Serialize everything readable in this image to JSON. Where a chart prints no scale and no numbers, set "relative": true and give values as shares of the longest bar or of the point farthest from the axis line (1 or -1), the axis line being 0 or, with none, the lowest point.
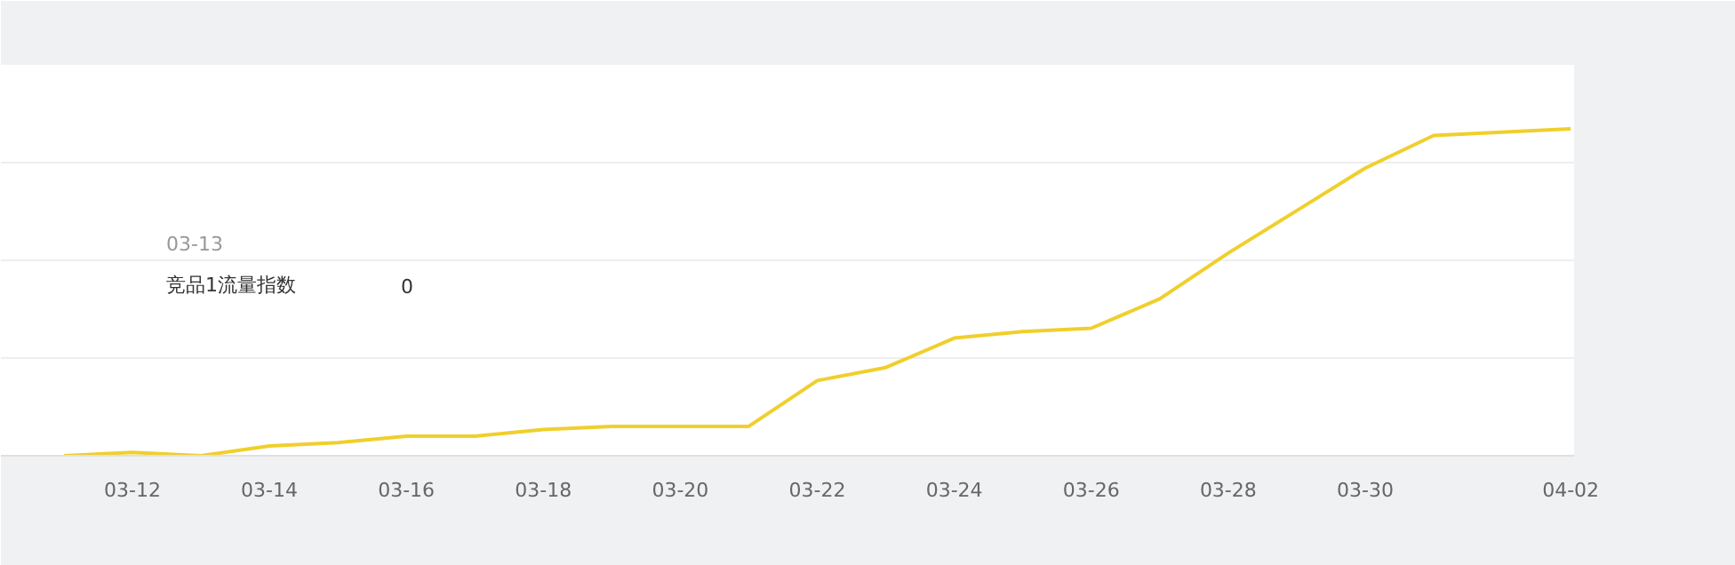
{
  "chart_data": {
    "type": "line",
    "relative": true,
    "categories": [
      null,
      "03-12",
      null,
      "03-14",
      null,
      "03-16",
      null,
      "03-18",
      null,
      "03-20",
      null,
      "03-22",
      null,
      "03-24",
      null,
      "03-26",
      null,
      "03-28",
      null,
      "03-30",
      null,
      null,
      "04-02"
    ],
    "series": [
      {
        "color": "#f0cf2c",
        "values": [
          0,
          0.01,
          0,
          0.03,
          0.04,
          0.06,
          0.06,
          0.08,
          0.09,
          0.09,
          0.09,
          0.23,
          0.27,
          0.36,
          0.38,
          0.39,
          0.48,
          0.62,
          0.75,
          0.88,
          0.98,
          0.99,
          1
        ]
      }
    ],
    "annotations": [
      "03-13",
      "竞品1流量指数",
      "0"
    ],
    "grid": "y",
    "marker": "none",
    "line_style": "solid"
  }
}
